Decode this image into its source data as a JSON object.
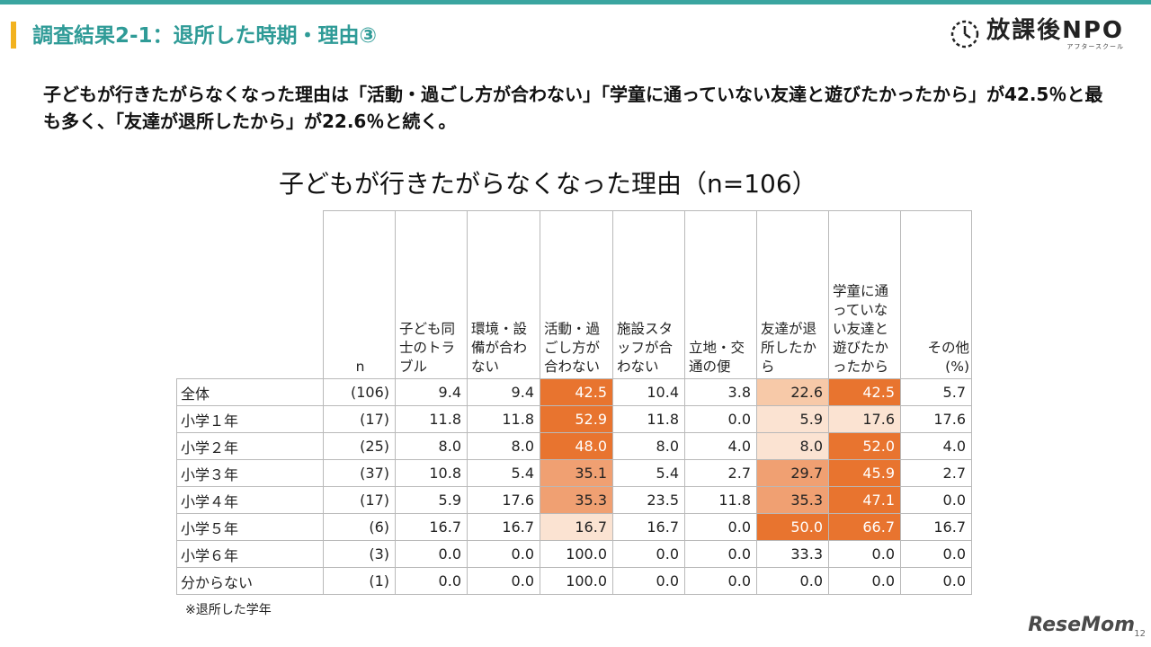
{
  "page_title": "調査結果2-1：退所した時期・理由③",
  "logo": {
    "text": "放課後NPO",
    "sub": "アフタースクール"
  },
  "headline": "子どもが行きたがらなくなった理由は「活動・過ごし方が合わない」「学童に通っていない友達と遊びたかったから」が42.5％と最も多く、「友達が退所したから」が22.6％と続く。",
  "chart_title": "子どもが行きたがらなくなった理由（n=106）",
  "table": {
    "n_header": "n",
    "columns": [
      "子ども同士のトラブル",
      "環境・設備が合わない",
      "活動・過ごし方が合わない",
      "施設スタッフが合わない",
      "立地・交通の便",
      "友達が退所したから",
      "学童に通っていない友達と遊びたかったから",
      "その他\n(%)"
    ],
    "rows": [
      {
        "label": "全体",
        "n": "(106)",
        "values": [
          "9.4",
          "9.4",
          "42.5",
          "10.4",
          "3.8",
          "22.6",
          "42.5",
          "5.7"
        ]
      },
      {
        "label": "小学１年",
        "n": "(17)",
        "values": [
          "11.8",
          "11.8",
          "52.9",
          "11.8",
          "0.0",
          "5.9",
          "17.6",
          "17.6"
        ]
      },
      {
        "label": "小学２年",
        "n": "(25)",
        "values": [
          "8.0",
          "8.0",
          "48.0",
          "8.0",
          "4.0",
          "8.0",
          "52.0",
          "4.0"
        ]
      },
      {
        "label": "小学３年",
        "n": "(37)",
        "values": [
          "10.8",
          "5.4",
          "35.1",
          "5.4",
          "2.7",
          "29.7",
          "45.9",
          "2.7"
        ]
      },
      {
        "label": "小学４年",
        "n": "(17)",
        "values": [
          "5.9",
          "17.6",
          "35.3",
          "23.5",
          "11.8",
          "35.3",
          "47.1",
          "0.0"
        ]
      },
      {
        "label": "小学５年",
        "n": "(6)",
        "values": [
          "16.7",
          "16.7",
          "16.7",
          "16.7",
          "0.0",
          "50.0",
          "66.7",
          "16.7"
        ]
      },
      {
        "label": "小学６年",
        "n": "(3)",
        "values": [
          "0.0",
          "0.0",
          "100.0",
          "0.0",
          "0.0",
          "33.3",
          "0.0",
          "0.0"
        ]
      },
      {
        "label": "分からない",
        "n": "(1)",
        "values": [
          "0.0",
          "0.0",
          "100.0",
          "0.0",
          "0.0",
          "0.0",
          "0.0",
          "0.0"
        ]
      }
    ],
    "highlight_colors": {
      "strong": "#e8742f",
      "mid": "#f0a072",
      "light": "#f7c9a8",
      "pale": "#fbe3d2"
    }
  },
  "footnote": "※退所した学年",
  "watermark": "ReseMom",
  "page_number": "12",
  "colors": {
    "accent": "#2f9b97",
    "bar": "#f2b21f",
    "topbar": "#3aa5a0"
  }
}
